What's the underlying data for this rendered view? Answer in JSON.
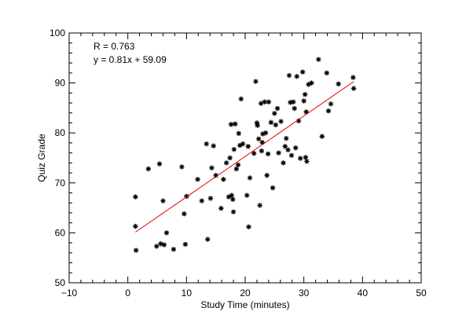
{
  "chart_data": {
    "type": "scatter",
    "title": "",
    "xlabel": "Study Time (minutes)",
    "ylabel": "Quiz Grade",
    "xlim": [
      -10,
      50
    ],
    "ylim": [
      50,
      100
    ],
    "xticks": [
      -10,
      0,
      10,
      20,
      30,
      40,
      50
    ],
    "yticks": [
      50,
      60,
      70,
      80,
      90,
      100
    ],
    "grid": false,
    "marker": "asterisk",
    "point_color": "#000000",
    "annotations": [
      "R = 0.763",
      "y = 0.81x + 59.09"
    ],
    "fit_line": {
      "slope": 0.81,
      "intercept": 59.09,
      "x_range": [
        1.3,
        38.5
      ],
      "color": "#e00000"
    },
    "points": [
      {
        "x": 1.3,
        "y": 67.2
      },
      {
        "x": 1.3,
        "y": 61.3
      },
      {
        "x": 1.4,
        "y": 56.5
      },
      {
        "x": 3.5,
        "y": 72.8
      },
      {
        "x": 4.9,
        "y": 57.3
      },
      {
        "x": 5.4,
        "y": 73.8
      },
      {
        "x": 5.6,
        "y": 57.8
      },
      {
        "x": 6.0,
        "y": 66.4
      },
      {
        "x": 6.2,
        "y": 57.6
      },
      {
        "x": 6.6,
        "y": 60.0
      },
      {
        "x": 7.8,
        "y": 56.7
      },
      {
        "x": 9.2,
        "y": 73.2
      },
      {
        "x": 9.6,
        "y": 63.8
      },
      {
        "x": 9.8,
        "y": 57.7
      },
      {
        "x": 10.0,
        "y": 67.3
      },
      {
        "x": 11.9,
        "y": 70.7
      },
      {
        "x": 12.6,
        "y": 66.4
      },
      {
        "x": 13.4,
        "y": 77.8
      },
      {
        "x": 13.6,
        "y": 58.7
      },
      {
        "x": 14.1,
        "y": 66.9
      },
      {
        "x": 14.3,
        "y": 73.0
      },
      {
        "x": 14.6,
        "y": 77.4
      },
      {
        "x": 15.0,
        "y": 71.5
      },
      {
        "x": 15.9,
        "y": 64.9
      },
      {
        "x": 16.3,
        "y": 70.7
      },
      {
        "x": 16.8,
        "y": 74.0
      },
      {
        "x": 17.2,
        "y": 67.2
      },
      {
        "x": 17.4,
        "y": 75.0
      },
      {
        "x": 17.6,
        "y": 81.7
      },
      {
        "x": 17.7,
        "y": 67.5
      },
      {
        "x": 17.9,
        "y": 66.7
      },
      {
        "x": 18.0,
        "y": 64.2
      },
      {
        "x": 18.1,
        "y": 76.7
      },
      {
        "x": 18.3,
        "y": 81.8
      },
      {
        "x": 18.5,
        "y": 72.8
      },
      {
        "x": 18.8,
        "y": 73.6
      },
      {
        "x": 18.9,
        "y": 79.9
      },
      {
        "x": 19.1,
        "y": 77.5
      },
      {
        "x": 19.3,
        "y": 86.8
      },
      {
        "x": 19.6,
        "y": 77.8
      },
      {
        "x": 20.3,
        "y": 67.5
      },
      {
        "x": 20.5,
        "y": 77.3
      },
      {
        "x": 20.6,
        "y": 61.2
      },
      {
        "x": 20.8,
        "y": 71.0
      },
      {
        "x": 21.5,
        "y": 75.9
      },
      {
        "x": 21.8,
        "y": 90.3
      },
      {
        "x": 22.0,
        "y": 82.0
      },
      {
        "x": 22.1,
        "y": 81.5
      },
      {
        "x": 22.3,
        "y": 78.8
      },
      {
        "x": 22.5,
        "y": 65.5
      },
      {
        "x": 22.7,
        "y": 85.9
      },
      {
        "x": 22.8,
        "y": 76.4
      },
      {
        "x": 22.9,
        "y": 78.1
      },
      {
        "x": 23.0,
        "y": 79.8
      },
      {
        "x": 23.3,
        "y": 86.2
      },
      {
        "x": 23.5,
        "y": 80.0
      },
      {
        "x": 23.7,
        "y": 71.5
      },
      {
        "x": 23.9,
        "y": 75.8
      },
      {
        "x": 24.0,
        "y": 86.2
      },
      {
        "x": 24.4,
        "y": 82.1
      },
      {
        "x": 24.7,
        "y": 69.0
      },
      {
        "x": 25.0,
        "y": 83.9
      },
      {
        "x": 25.2,
        "y": 81.6
      },
      {
        "x": 25.5,
        "y": 84.9
      },
      {
        "x": 25.7,
        "y": 76.0
      },
      {
        "x": 26.1,
        "y": 82.3
      },
      {
        "x": 26.5,
        "y": 74.0
      },
      {
        "x": 26.8,
        "y": 77.3
      },
      {
        "x": 27.0,
        "y": 78.9
      },
      {
        "x": 27.3,
        "y": 76.6
      },
      {
        "x": 27.5,
        "y": 91.5
      },
      {
        "x": 27.7,
        "y": 86.1
      },
      {
        "x": 27.9,
        "y": 75.5
      },
      {
        "x": 28.2,
        "y": 86.2
      },
      {
        "x": 28.4,
        "y": 84.9
      },
      {
        "x": 28.6,
        "y": 77.0
      },
      {
        "x": 28.8,
        "y": 91.3
      },
      {
        "x": 29.1,
        "y": 82.4
      },
      {
        "x": 29.4,
        "y": 74.9
      },
      {
        "x": 29.8,
        "y": 92.2
      },
      {
        "x": 30.0,
        "y": 86.4
      },
      {
        "x": 30.2,
        "y": 87.7
      },
      {
        "x": 30.3,
        "y": 75.1
      },
      {
        "x": 30.4,
        "y": 84.2
      },
      {
        "x": 30.5,
        "y": 74.3
      },
      {
        "x": 30.8,
        "y": 89.7
      },
      {
        "x": 31.3,
        "y": 90.0
      },
      {
        "x": 32.5,
        "y": 94.7
      },
      {
        "x": 33.1,
        "y": 79.3
      },
      {
        "x": 33.9,
        "y": 92.0
      },
      {
        "x": 34.2,
        "y": 84.4
      },
      {
        "x": 34.6,
        "y": 85.8
      },
      {
        "x": 35.9,
        "y": 89.8
      },
      {
        "x": 38.4,
        "y": 91.1
      },
      {
        "x": 38.5,
        "y": 88.9
      }
    ]
  }
}
